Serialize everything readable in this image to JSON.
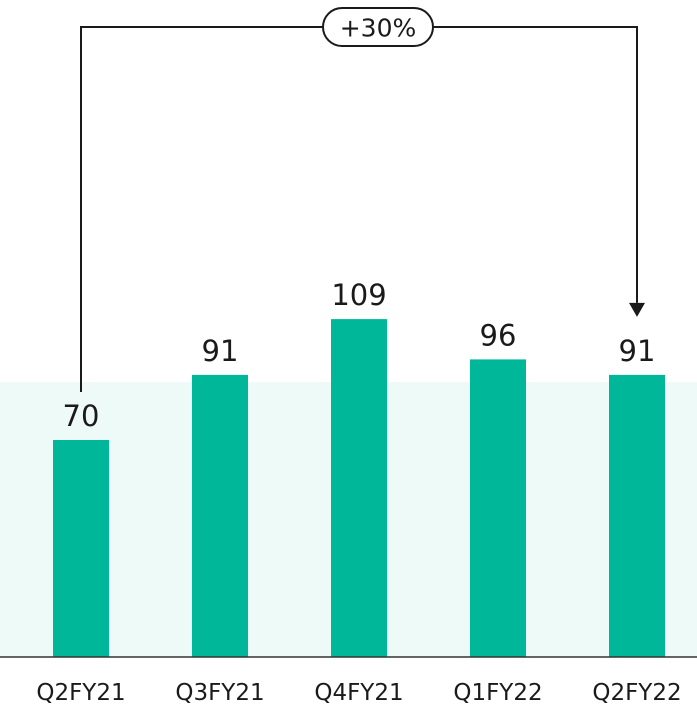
{
  "chart_data": {
    "type": "bar",
    "categories": [
      "Q2FY21",
      "Q3FY21",
      "Q4FY21",
      "Q1FY22",
      "Q2FY22"
    ],
    "values": [
      70,
      91,
      109,
      96,
      91
    ],
    "ylim": [
      0,
      120
    ],
    "grid": false,
    "legend": "none",
    "bar_color": "#00b899",
    "annotation": {
      "label": "+30%",
      "from_category": "Q2FY21",
      "to_category": "Q2FY22"
    }
  },
  "colors": {
    "background": "#ffffff",
    "backdrop": "#eefaf7",
    "text": "#1a1a1a",
    "axis": "#333333"
  }
}
